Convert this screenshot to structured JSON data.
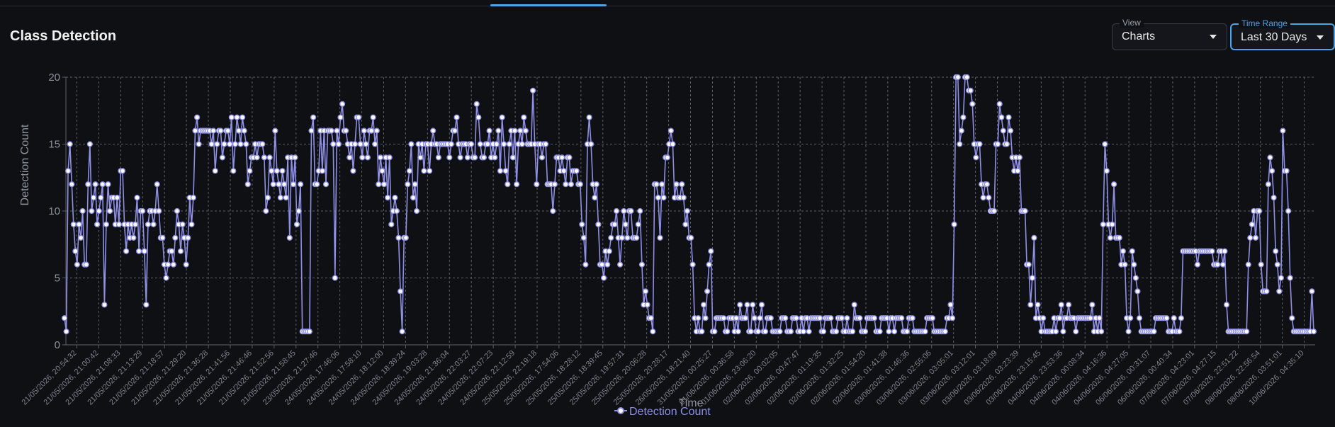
{
  "header": {
    "title": "Class Detection"
  },
  "controls": {
    "view": {
      "label": "View",
      "value": "Charts"
    },
    "time_range": {
      "label": "Time Range",
      "value": "Last 30 Days"
    }
  },
  "colors": {
    "series": "#8f8fe6",
    "grid": "#5a5f6a",
    "accent": "#4ea3e6"
  },
  "chart_data": {
    "type": "line",
    "xlabel": "Time",
    "ylabel": "Detection Count",
    "ylim": [
      0,
      20
    ],
    "yticks": [
      0,
      5,
      10,
      15,
      20
    ],
    "grid": true,
    "legend": "bottom-center",
    "x_ticks": [
      "21/05/2026, 20:54:32",
      "21/05/2026, 21:00:42",
      "21/05/2026, 21:08:33",
      "21/05/2026, 21:13:29",
      "21/05/2026, 21:18:57",
      "21/05/2026, 21:29:20",
      "21/05/2026, 21:36:28",
      "21/05/2026, 21:41:56",
      "21/05/2026, 21:46:46",
      "21/05/2026, 21:52:56",
      "21/05/2026, 21:58:45",
      "23/05/2026, 21:27:46",
      "24/05/2026, 17:46:06",
      "24/05/2026, 17:58:10",
      "24/05/2026, 18:12:00",
      "24/05/2026, 18:39:24",
      "24/05/2026, 19:03:28",
      "24/05/2026, 21:36:04",
      "24/05/2026, 22:03:27",
      "24/05/2026, 22:07:23",
      "24/05/2026, 22:12:59",
      "25/05/2026, 22:19:18",
      "25/05/2026, 17:54:06",
      "25/05/2026, 18:28:12",
      "25/05/2026, 18:39:45",
      "25/05/2026, 19:57:31",
      "25/05/2026, 20:06:28",
      "25/05/2026, 20:28:17",
      "26/05/2026, 18:21:40",
      "31/05/2026, 00:25:27",
      "01/06/2026, 00:36:58",
      "01/06/2026, 23:06:20",
      "02/06/2026, 00:02:05",
      "02/06/2026, 00:47:47",
      "02/06/2026, 01:19:35",
      "02/06/2026, 01:32:25",
      "02/06/2026, 01:54:20",
      "02/06/2026, 01:41:38",
      "03/06/2026, 01:46:36",
      "03/06/2026, 02:55:06",
      "03/06/2026, 03:05:01",
      "03/06/2026, 03:12:01",
      "03/06/2026, 03:18:09",
      "03/06/2026, 03:23:39",
      "03/06/2026, 23:15:45",
      "04/06/2026, 23:53:36",
      "04/06/2026, 00:08:34",
      "04/06/2026, 04:16:36",
      "04/06/2026, 04:27:05",
      "06/06/2026, 00:31:07",
      "06/06/2026, 00:40:34",
      "07/06/2026, 04:23:01",
      "07/06/2026, 04:27:15",
      "07/06/2026, 22:51:22",
      "08/06/2026, 22:56:54",
      "08/06/2026, 03:51:01",
      "10/06/2026, 04:35:10"
    ],
    "series": [
      {
        "name": "Detection Count",
        "values": [
          2,
          1,
          13,
          15,
          12,
          9,
          7,
          6,
          9,
          8,
          10,
          6,
          6,
          12,
          15,
          10,
          11,
          12,
          9,
          10,
          11,
          12,
          3,
          9,
          12,
          10,
          11,
          11,
          9,
          11,
          9,
          13,
          13,
          9,
          7,
          9,
          8,
          9,
          8,
          9,
          11,
          7,
          10,
          10,
          7,
          3,
          9,
          10,
          10,
          9,
          10,
          12,
          10,
          8,
          8,
          6,
          5,
          6,
          7,
          7,
          6,
          8,
          10,
          9,
          7,
          9,
          8,
          6,
          8,
          11,
          9,
          11,
          16,
          17,
          15,
          16,
          16,
          16,
          16,
          16,
          16,
          15,
          16,
          13,
          15,
          16,
          16,
          14,
          15,
          16,
          16,
          15,
          17,
          13,
          15,
          17,
          16,
          15,
          17,
          16,
          15,
          12,
          13,
          14,
          14,
          15,
          14,
          15,
          15,
          15,
          14,
          10,
          11,
          14,
          13,
          12,
          16,
          13,
          12,
          11,
          13,
          12,
          11,
          14,
          8,
          14,
          12,
          14,
          9,
          10,
          12,
          1,
          1,
          1,
          1,
          1,
          16,
          17,
          12,
          12,
          13,
          16,
          13,
          16,
          12,
          16,
          16,
          16,
          15,
          5,
          16,
          15,
          17,
          18,
          16,
          16,
          15,
          14,
          15,
          13,
          15,
          17,
          17,
          15,
          14,
          16,
          15,
          14,
          16,
          16,
          17,
          15,
          16,
          12,
          14,
          13,
          12,
          14,
          11,
          14,
          9,
          10,
          11,
          10,
          8,
          4,
          1,
          8,
          8,
          12,
          13,
          15,
          11,
          12,
          10,
          15,
          14,
          15,
          13,
          15,
          15,
          13,
          15,
          16,
          15,
          15,
          14,
          15,
          15,
          15,
          15,
          15,
          14,
          15,
          16,
          16,
          17,
          15,
          14,
          15,
          15,
          15,
          14,
          15,
          15,
          14,
          14,
          18,
          17,
          15,
          14,
          14,
          15,
          15,
          16,
          14,
          15,
          14,
          15,
          16,
          13,
          17,
          15,
          13,
          12,
          15,
          16,
          14,
          16,
          12,
          15,
          16,
          15,
          17,
          16,
          15,
          15,
          15,
          19,
          15,
          12,
          15,
          15,
          14,
          15,
          15,
          12,
          12,
          12,
          10,
          12,
          14,
          14,
          13,
          14,
          13,
          12,
          14,
          14,
          12,
          13,
          13,
          13,
          12,
          12,
          9,
          8,
          6,
          15,
          17,
          15,
          12,
          11,
          12,
          9,
          6,
          6,
          5,
          7,
          6,
          7,
          8,
          9,
          9,
          10,
          8,
          6,
          8,
          10,
          9,
          8,
          10,
          10,
          8,
          8,
          8,
          9,
          10,
          6,
          3,
          4,
          3,
          2,
          2,
          1,
          12,
          12,
          11,
          8,
          12,
          11,
          14,
          14,
          15,
          16,
          15,
          11,
          12,
          11,
          11,
          12,
          11,
          9,
          10,
          8,
          8,
          6,
          2,
          1,
          2,
          1,
          1,
          3,
          2,
          4,
          6,
          7,
          1,
          1,
          2,
          2,
          2,
          2,
          2,
          1,
          1,
          2,
          2,
          2,
          1,
          2,
          1,
          3,
          2,
          2,
          2,
          3,
          1,
          1,
          3,
          2,
          1,
          1,
          2,
          3,
          1,
          1,
          2,
          2,
          2,
          1,
          1,
          1,
          1,
          1,
          2,
          2,
          2,
          1,
          1,
          1,
          2,
          2,
          2,
          1,
          1,
          2,
          1,
          2,
          2,
          1,
          2,
          2,
          2,
          2,
          2,
          2,
          1,
          1,
          2,
          2,
          2,
          2,
          1,
          1,
          1,
          2,
          2,
          2,
          1,
          1,
          2,
          1,
          1,
          1,
          3,
          2,
          2,
          2,
          1,
          1,
          1,
          2,
          2,
          2,
          2,
          2,
          1,
          1,
          1,
          2,
          2,
          2,
          2,
          1,
          2,
          2,
          1,
          2,
          2,
          2,
          2,
          1,
          1,
          1,
          2,
          2,
          2,
          1,
          1,
          1,
          1,
          1,
          1,
          1,
          2,
          2,
          2,
          2,
          1,
          1,
          1,
          1,
          1,
          1,
          1,
          2,
          2,
          3,
          2,
          9,
          20,
          20,
          15,
          16,
          17,
          20,
          20,
          19,
          19,
          18,
          15,
          14,
          15,
          15,
          12,
          11,
          12,
          12,
          11,
          10,
          10,
          10,
          15,
          15,
          18,
          17,
          16,
          15,
          15,
          17,
          16,
          14,
          13,
          14,
          13,
          14,
          10,
          10,
          10,
          6,
          6,
          3,
          5,
          8,
          2,
          3,
          2,
          1,
          2,
          1,
          1,
          1,
          1,
          1,
          2,
          1,
          2,
          2,
          3,
          1,
          2,
          2,
          3,
          2,
          2,
          2,
          1,
          2,
          2,
          2,
          2,
          2,
          2,
          2,
          2,
          3,
          1,
          2,
          1,
          2,
          1,
          9,
          15,
          13,
          9,
          8,
          9,
          12,
          8,
          8,
          8,
          6,
          7,
          6,
          2,
          1,
          2,
          7,
          6,
          5,
          4,
          2,
          1,
          1,
          1,
          1,
          1,
          1,
          1,
          1,
          2,
          2,
          2,
          2,
          2,
          2,
          2,
          1,
          1,
          1,
          2,
          1,
          1,
          1,
          2,
          7,
          7,
          7,
          7,
          7,
          7,
          7,
          7,
          6,
          7,
          7,
          7,
          7,
          7,
          7,
          7,
          7,
          6,
          6,
          6,
          7,
          7,
          6,
          7,
          3,
          1,
          1,
          1,
          1,
          1,
          1,
          1,
          1,
          1,
          1,
          1,
          6,
          8,
          9,
          10,
          8,
          10,
          10,
          6,
          4,
          4,
          4,
          12,
          14,
          13,
          11,
          7,
          6,
          4,
          5,
          16,
          13,
          13,
          10,
          5,
          2,
          1,
          1,
          1,
          1,
          1,
          1,
          1,
          1,
          1,
          1,
          4,
          1
        ]
      }
    ]
  }
}
